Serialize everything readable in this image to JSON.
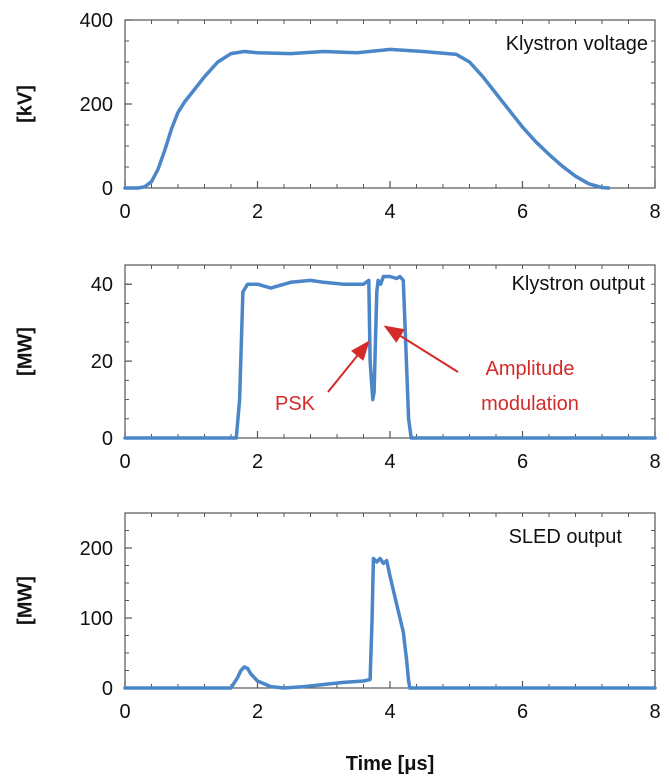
{
  "chart_data": [
    {
      "type": "line",
      "title": "Klystron voltage",
      "ylabel": "[kV]",
      "xlabel": "",
      "xlim": [
        0,
        8
      ],
      "ylim": [
        0,
        400
      ],
      "xticks": [
        0,
        2,
        4,
        6,
        8
      ],
      "yticks": [
        0,
        200,
        400
      ],
      "color": "#4a86c8",
      "series": [
        {
          "x": [
            0,
            0.2,
            0.3,
            0.4,
            0.5,
            0.6,
            0.7,
            0.8,
            0.9,
            1.0,
            1.2,
            1.4,
            1.6,
            1.8,
            2.0,
            2.5,
            3.0,
            3.5,
            4.0,
            4.5,
            5.0,
            5.2,
            5.4,
            5.6,
            5.8,
            6.0,
            6.2,
            6.4,
            6.6,
            6.8,
            7.0,
            7.2,
            7.3
          ],
          "y": [
            0,
            0,
            3,
            15,
            45,
            90,
            140,
            180,
            205,
            225,
            265,
            300,
            320,
            325,
            322,
            320,
            325,
            322,
            330,
            325,
            318,
            300,
            265,
            225,
            185,
            145,
            110,
            80,
            52,
            28,
            10,
            1,
            0
          ]
        }
      ]
    },
    {
      "type": "line",
      "title": "Klystron output",
      "ylabel": "[MW]",
      "xlabel": "",
      "xlim": [
        0,
        8
      ],
      "ylim": [
        0,
        45
      ],
      "xticks": [
        0,
        2,
        4,
        6,
        8
      ],
      "yticks": [
        0,
        20,
        40
      ],
      "color": "#4a86c8",
      "series": [
        {
          "x": [
            0,
            1.68,
            1.73,
            1.78,
            1.85,
            2.0,
            2.2,
            2.5,
            2.8,
            3.0,
            3.3,
            3.6,
            3.68,
            3.7,
            3.74,
            3.76,
            3.8,
            3.82,
            3.86,
            3.9,
            4.0,
            4.1,
            4.15,
            4.2,
            4.28,
            4.32,
            8.0
          ],
          "y": [
            0,
            0,
            10,
            38,
            40,
            40,
            39,
            40.5,
            41,
            40.5,
            40,
            40,
            41,
            20,
            10,
            12,
            38,
            41,
            40,
            42,
            42,
            41.5,
            42,
            41,
            5,
            0,
            0
          ]
        }
      ],
      "annotations": [
        {
          "text": "PSK",
          "x": 3.72,
          "y": 25
        },
        {
          "text": "Amplitude",
          "x": 3.9,
          "y": 29
        },
        {
          "text": "modulation",
          "x": 3.9,
          "y": 29
        }
      ]
    },
    {
      "type": "line",
      "title": "SLED output",
      "ylabel": "[MW]",
      "xlabel": "Time [μs]",
      "xlim": [
        0,
        8
      ],
      "ylim": [
        0,
        250
      ],
      "xticks": [
        0,
        2,
        4,
        6,
        8
      ],
      "yticks": [
        0,
        100,
        200
      ],
      "color": "#4a86c8",
      "series": [
        {
          "x": [
            0,
            1.6,
            1.7,
            1.75,
            1.8,
            1.85,
            1.9,
            2.0,
            2.2,
            2.4,
            2.7,
            3.0,
            3.3,
            3.6,
            3.7,
            3.73,
            3.75,
            3.8,
            3.85,
            3.9,
            3.95,
            4.0,
            4.05,
            4.1,
            4.2,
            4.25,
            4.28,
            4.3,
            8.0
          ],
          "y": [
            0,
            0,
            15,
            25,
            30,
            28,
            20,
            10,
            2,
            0,
            2,
            5,
            8,
            10,
            12,
            100,
            185,
            180,
            185,
            178,
            182,
            160,
            140,
            120,
            80,
            40,
            10,
            0,
            0
          ]
        }
      ]
    }
  ]
}
